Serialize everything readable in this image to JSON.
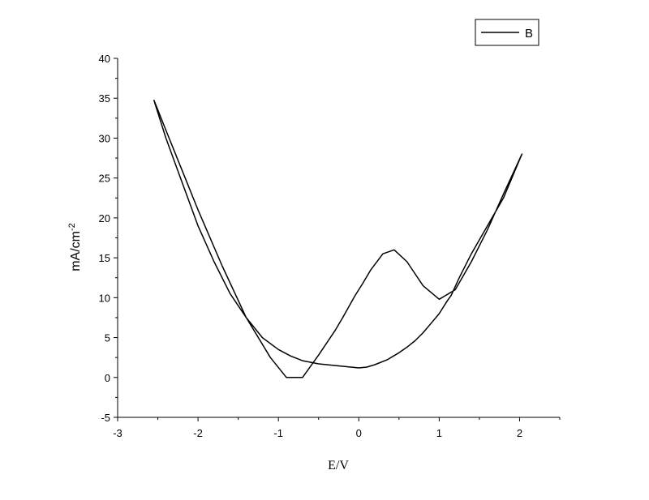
{
  "chart_data": {
    "type": "line",
    "xlabel": "E/V",
    "ylabel_base": "mA/cm",
    "ylabel_sup": "-2",
    "xlim": [
      -3,
      2.5
    ],
    "ylim": [
      -5,
      40
    ],
    "xticks": [
      -3,
      -2,
      -1,
      0,
      1,
      2
    ],
    "xtick_labels": [
      "-3",
      "-2",
      "-1",
      "0",
      "1",
      "2"
    ],
    "yticks": [
      -5,
      0,
      5,
      10,
      15,
      20,
      25,
      30,
      35,
      40
    ],
    "ytick_labels": [
      "-5",
      "0",
      "5",
      "10",
      "15",
      "20",
      "25",
      "30",
      "35",
      "40"
    ],
    "legend": {
      "position": "top-right",
      "entries": [
        "B"
      ]
    },
    "series": [
      {
        "name": "B",
        "color": "#000000",
        "x": [
          -2.55,
          -2.4,
          -2.2,
          -2.0,
          -1.8,
          -1.6,
          -1.4,
          -1.2,
          -1.0,
          -0.85,
          -0.7,
          -0.5,
          -0.3,
          -0.1,
          0.0,
          0.1,
          0.2,
          0.35,
          0.5,
          0.6,
          0.7,
          0.8,
          0.9,
          1.0,
          1.1,
          1.15,
          1.25,
          1.4,
          1.6,
          1.8,
          2.03,
          1.8,
          1.6,
          1.4,
          1.2,
          1.0,
          0.8,
          0.6,
          0.44,
          0.3,
          0.15,
          0.05,
          -0.05,
          -0.2,
          -0.3,
          -0.4,
          -0.5,
          -0.7,
          -0.9,
          -1.1,
          -1.4,
          -1.7,
          -2.0,
          -2.2,
          -2.4,
          -2.55
        ],
        "y": [
          34.8,
          30.0,
          24.5,
          19.0,
          14.5,
          10.5,
          7.5,
          5.0,
          3.5,
          2.7,
          2.1,
          1.7,
          1.5,
          1.3,
          1.2,
          1.3,
          1.6,
          2.2,
          3.1,
          3.8,
          4.6,
          5.6,
          6.8,
          8.0,
          9.6,
          10.3,
          12.5,
          15.5,
          19.0,
          22.5,
          28.0,
          23.0,
          18.5,
          14.5,
          11.0,
          9.8,
          11.5,
          14.5,
          16.0,
          15.5,
          13.5,
          11.8,
          10.2,
          7.5,
          5.8,
          4.3,
          2.8,
          0.0,
          0.0,
          2.5,
          7.5,
          14.0,
          21.0,
          26.0,
          31.0,
          34.8
        ]
      }
    ]
  }
}
